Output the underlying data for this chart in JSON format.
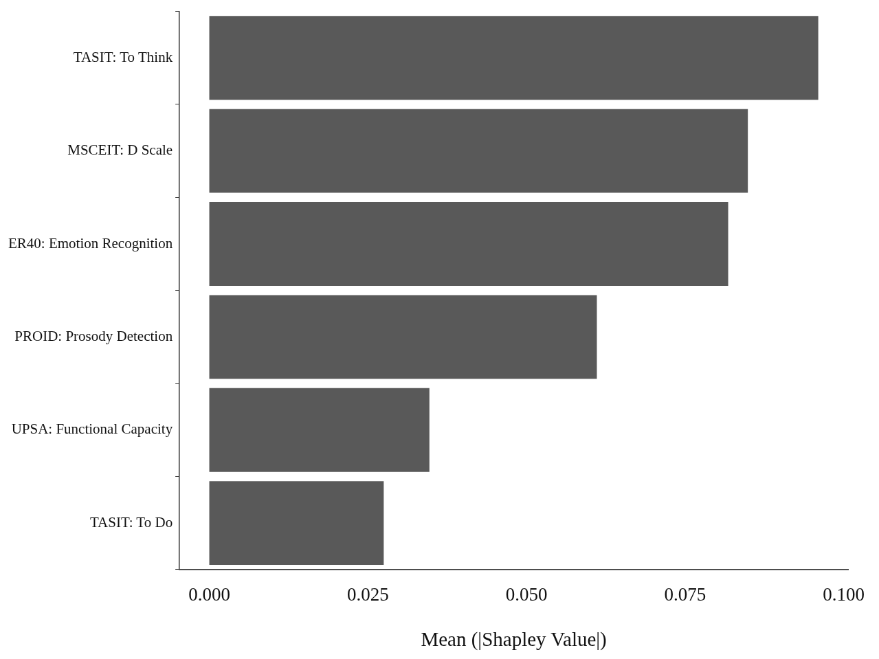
{
  "chart_data": {
    "type": "bar",
    "orientation": "horizontal",
    "xlabel": "Mean (|Shapley Value|)",
    "categories": [
      "TASIT: To Think",
      "MSCEIT: D Scale",
      "ER40: Emotion Recognition",
      "PROID: Prosody Detection",
      "UPSA: Functional Capacity",
      "TASIT: To Do"
    ],
    "values": [
      0.096,
      0.0849,
      0.0818,
      0.0611,
      0.0347,
      0.0275
    ],
    "color": "#595959",
    "xlim": [
      -0.0047,
      0.1007
    ],
    "xticks": [
      {
        "value": 0,
        "label": "0.000"
      },
      {
        "value": 0.025,
        "label": "0.025"
      },
      {
        "value": 0.05,
        "label": "0.050"
      },
      {
        "value": 0.075,
        "label": "0.075"
      },
      {
        "value": 0.1,
        "label": "0.100"
      }
    ]
  }
}
